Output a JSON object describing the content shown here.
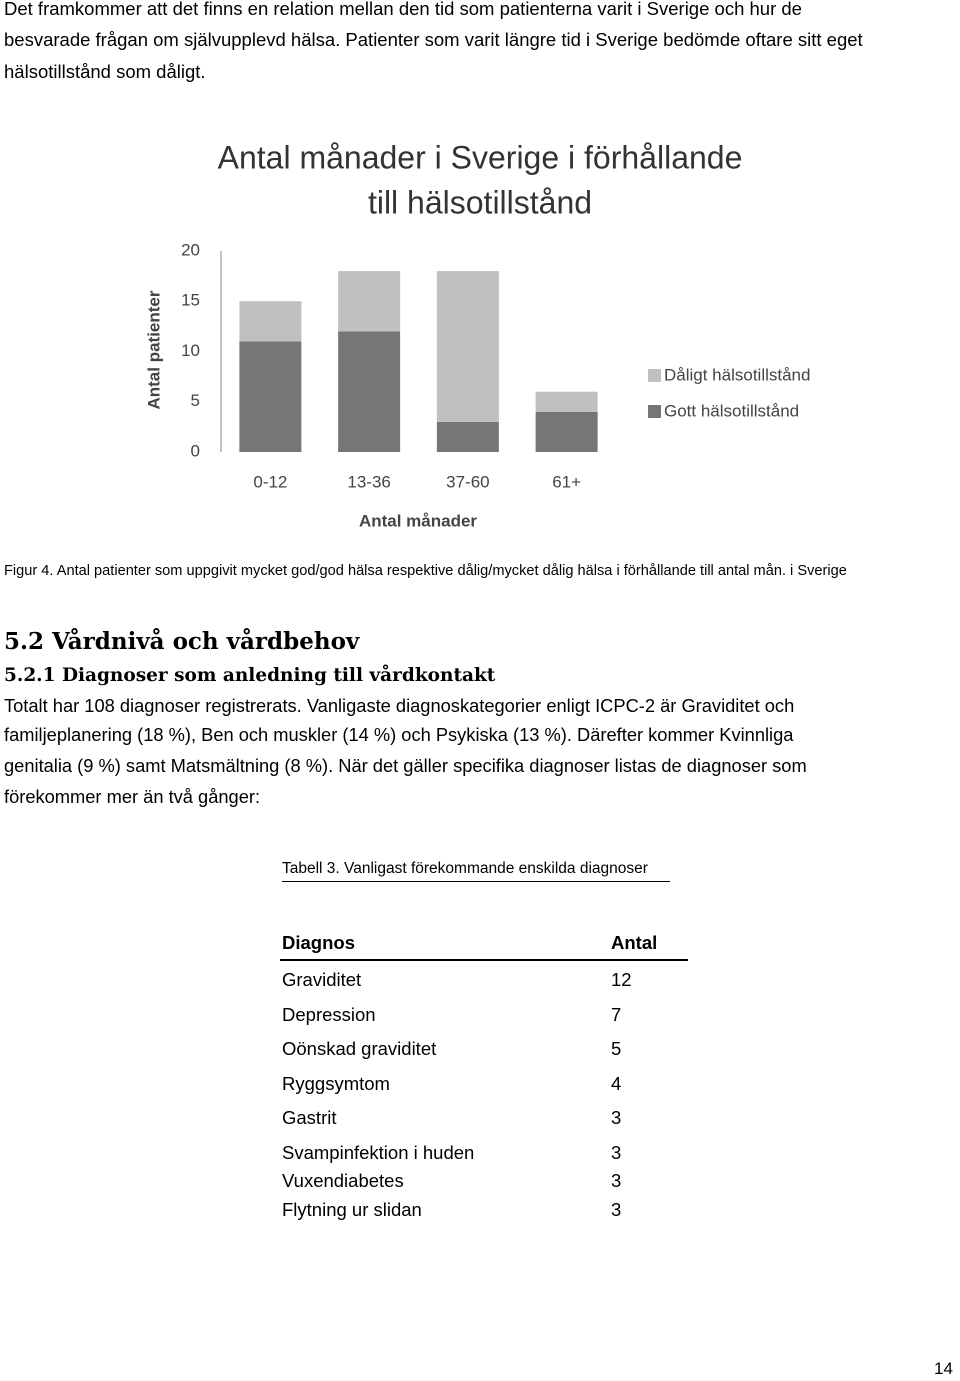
{
  "intro": [
    "Det framkommer att det finns en relation mellan den tid som patienterna varit i Sverige och hur de",
    "besvarade frågan om självupplevd hälsa. Patienter som varit längre tid i Sverige bedömde oftare sitt eget",
    "hälsotillstånd som dåligt."
  ],
  "chart_data": {
    "type": "stacked-bar",
    "title": [
      "Antal månader i Sverige i förhållande",
      "till hälsotillstånd"
    ],
    "x_label": "Antal månader",
    "y_label": "Antal patienter",
    "categories": [
      "0-12",
      "13-36",
      "37-60",
      "61+"
    ],
    "series": [
      {
        "name": "Gott hälsotillstånd",
        "color": "#767676",
        "values": [
          11,
          12,
          3,
          4
        ]
      },
      {
        "name": "Dåligt hälsotillstånd",
        "color": "#c0c0c0",
        "values": [
          4,
          6,
          15,
          2
        ]
      }
    ],
    "ylim": [
      0,
      20
    ],
    "yticks": [
      0,
      5,
      10,
      15,
      20
    ],
    "grid": false,
    "legend": "right"
  },
  "figure_caption": "Figur 4. Antal patienter som uppgivit mycket god/god hälsa respektive dålig/mycket dålig hälsa i förhållande till antal mån. i Sverige",
  "section_heading": "5.2 Vårdnivå och vårdbehov",
  "subsection_heading": "5.2.1 Diagnoser som anledning till vårdkontakt",
  "body": [
    "Totalt har 108 diagnoser registrerats. Vanligaste diagnoskategorier enligt ICPC-2 är Graviditet och",
    "familjeplanering (18  %),  Ben och muskler (14 %) och Psykiska (13 %). Därefter kommer Kvinnliga",
    "genitalia (9 %) samt Matsmältning (8 %). När det gäller specifika diagnoser listas de diagnoser som",
    "förekommer mer än två gånger:"
  ],
  "table": {
    "caption": "Tabell 3. Vanligast förekommande enskilda diagnoser",
    "header": [
      "Diagnos",
      "Antal"
    ],
    "rows": [
      [
        "Graviditet",
        12
      ],
      [
        "Depression",
        7
      ],
      [
        "Oönskad graviditet",
        5
      ],
      [
        "Ryggsymtom",
        4
      ],
      [
        "Gastrit",
        3
      ],
      [
        "Svampinfektion i huden",
        3
      ],
      [
        "Vuxendiabetes",
        3
      ],
      [
        "Flytning ur slidan",
        3
      ]
    ]
  },
  "page_number": "14"
}
